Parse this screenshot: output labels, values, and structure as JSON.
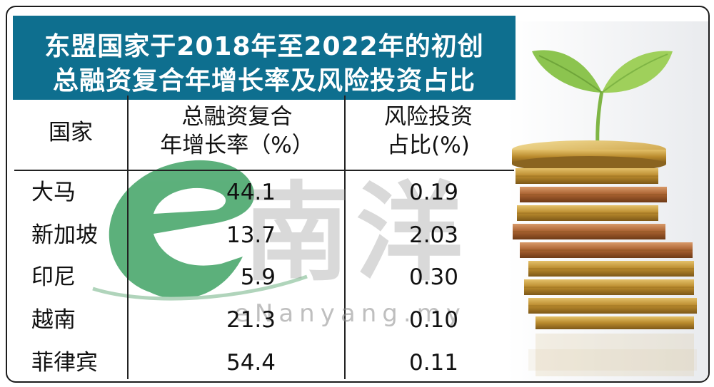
{
  "chart_data": {
    "type": "table",
    "title": [
      "东盟国家于2018年至2022年的初创",
      "总融资复合年增长率及风险投资占比"
    ],
    "columns": [
      {
        "key": "country",
        "label_lines": [
          "国家"
        ]
      },
      {
        "key": "growth",
        "label_lines": [
          "总融资复合",
          "年增长率（%）"
        ]
      },
      {
        "key": "vc",
        "label_lines": [
          "风险投资",
          "占比(%)"
        ]
      }
    ],
    "rows": [
      {
        "country": "大马",
        "growth": "44.1",
        "vc": "0.19"
      },
      {
        "country": "新加坡",
        "growth": "13.7",
        "vc": "2.03"
      },
      {
        "country": "印尼",
        "growth": "5.9",
        "vc": "0.30"
      },
      {
        "country": "越南",
        "growth": "21.3",
        "vc": "0.10"
      },
      {
        "country": "菲律宾",
        "growth": "54.4",
        "vc": "0.11"
      }
    ]
  },
  "watermark": {
    "brand": "南洋",
    "site": "eNanyang.my"
  },
  "colors": {
    "title_bg": "#0e6f8f",
    "title_text": "#ffffff",
    "watermark_green": "#2f9a57",
    "watermark_gray": "#8c8c8c"
  },
  "decorations": [
    "coin-stack-illustration",
    "seedling-illustration"
  ]
}
